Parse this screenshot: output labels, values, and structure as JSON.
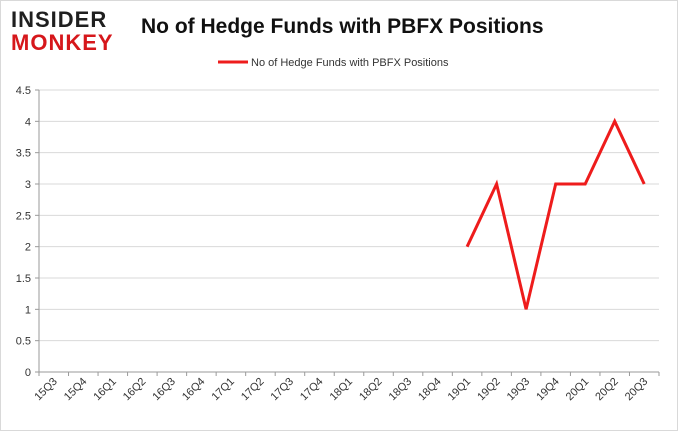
{
  "logo": {
    "line1": "INSIDER",
    "line2": "MONKEY"
  },
  "chart_data": {
    "type": "line",
    "title": "No of Hedge Funds with PBFX Positions",
    "xlabel": "",
    "ylabel": "",
    "categories": [
      "15Q3",
      "15Q4",
      "16Q1",
      "16Q2",
      "16Q3",
      "16Q4",
      "17Q1",
      "17Q2",
      "17Q3",
      "17Q4",
      "18Q1",
      "18Q2",
      "18Q3",
      "18Q4",
      "19Q1",
      "19Q2",
      "19Q3",
      "19Q4",
      "20Q1",
      "20Q2",
      "20Q3"
    ],
    "series": [
      {
        "name": "No of Hedge Funds with PBFX Positions",
        "color": "#ee1c1c",
        "values": [
          null,
          null,
          null,
          null,
          null,
          null,
          null,
          null,
          null,
          null,
          null,
          null,
          null,
          null,
          2,
          3,
          1,
          3,
          3,
          4,
          3
        ]
      }
    ],
    "ylim": [
      0,
      4.5
    ],
    "yticks": [
      "0",
      "0.5",
      "1",
      "1.5",
      "2",
      "2.5",
      "3",
      "3.5",
      "4",
      "4.5"
    ],
    "grid": true,
    "legend": "top-center"
  }
}
